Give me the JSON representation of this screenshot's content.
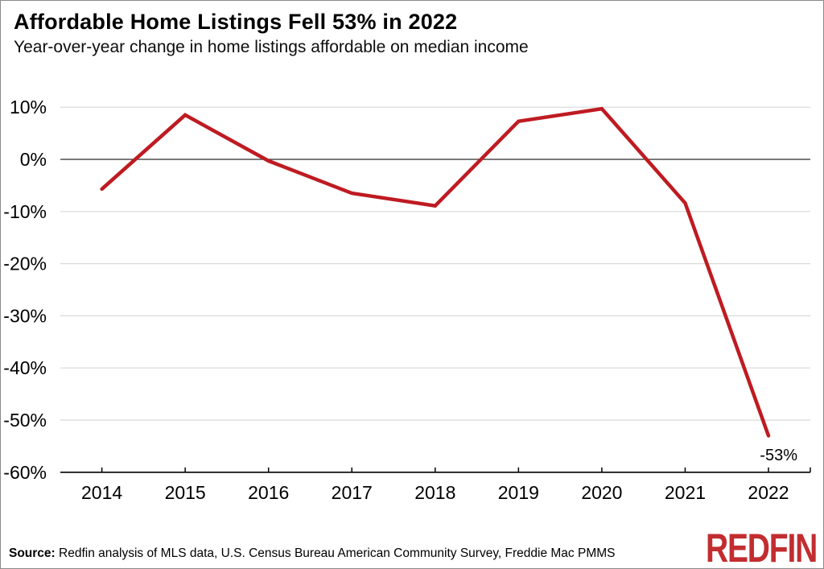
{
  "header": {
    "title": "Affordable Home Listings Fell 53% in 2022",
    "subtitle": "Year-over-year change in home listings affordable on median income"
  },
  "chart_data": {
    "type": "line",
    "title": "Affordable Home Listings Fell 53% in 2022",
    "subtitle": "Year-over-year change in home listings affordable on median income",
    "series_name": "Year-over-year change in affordable home listings",
    "categories": [
      "2014",
      "2015",
      "2016",
      "2017",
      "2018",
      "2019",
      "2020",
      "2021",
      "2022"
    ],
    "values": [
      -5.7,
      8.5,
      -0.3,
      -6.5,
      -8.9,
      7.3,
      9.7,
      -8.4,
      -53
    ],
    "xlabel": "",
    "ylabel": "",
    "ylim": [
      -60,
      10
    ],
    "yticks": {
      "values": [
        10,
        0,
        -10,
        -20,
        -30,
        -40,
        -50,
        -60
      ],
      "labels": [
        "10%",
        "0%",
        "-10%",
        "-20%",
        "-30%",
        "-40%",
        "-50%",
        "-60%"
      ]
    },
    "grid": "horizontal-only",
    "zero_baseline": true,
    "legend": "none",
    "annotation": {
      "text": "-53%",
      "attached_to": "2022"
    },
    "line_color": "#be1b22"
  },
  "footer": {
    "source_label": "Source:",
    "source_text": " Redfin analysis of MLS data, U.S. Census Bureau American Community Survey, Freddie Mac PMMS",
    "logo_text": "REDFIN"
  },
  "colors": {
    "line": "#be1b22",
    "logo": "#c22d30",
    "grid": "#d9d9d9",
    "zero_line": "#2a2a2a",
    "axis": "#000000",
    "text": "#000000"
  }
}
